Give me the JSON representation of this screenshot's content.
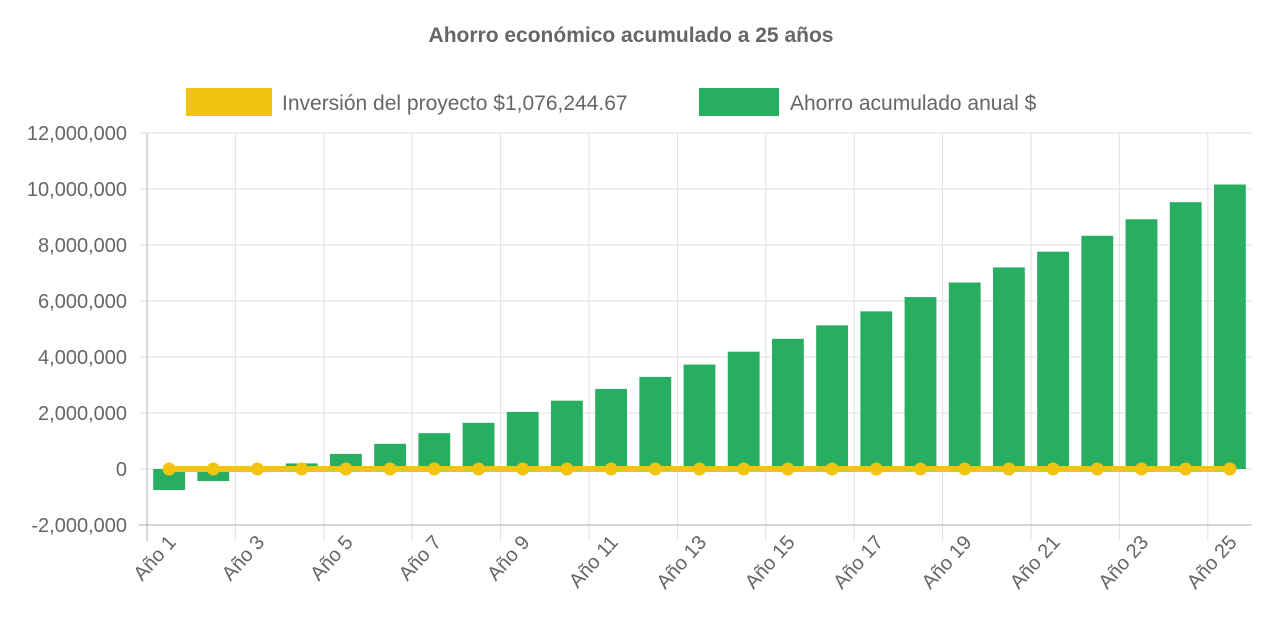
{
  "chart_data": {
    "type": "bar",
    "title": "Ahorro económico acumulado a 25 años",
    "xlabel": "",
    "ylabel": "",
    "ylim": [
      -2000000,
      12000000
    ],
    "y_ticks": [
      -2000000,
      0,
      2000000,
      4000000,
      6000000,
      8000000,
      10000000,
      12000000
    ],
    "grid": true,
    "legend_position": "top-center",
    "categories": [
      "Año 1",
      "Año 2",
      "Año 3",
      "Año 4",
      "Año 5",
      "Año 6",
      "Año 7",
      "Año 8",
      "Año 9",
      "Año 10",
      "Año 11",
      "Año 12",
      "Año 13",
      "Año 14",
      "Año 15",
      "Año 16",
      "Año 17",
      "Año 18",
      "Año 19",
      "Año 20",
      "Año 21",
      "Año 22",
      "Año 23",
      "Año 24",
      "Año 25"
    ],
    "x_tick_labels": [
      "Año 1",
      "Año 3",
      "Año 5",
      "Año 7",
      "Año 9",
      "Año 11",
      "Año 13",
      "Año 15",
      "Año 17",
      "Año 19",
      "Año 21",
      "Año 23",
      "Año 25"
    ],
    "series": [
      {
        "name": "Inversión del proyecto $1,076,244.67",
        "type": "line",
        "color": "#f2c40f",
        "values": [
          0,
          0,
          0,
          0,
          0,
          0,
          0,
          0,
          0,
          0,
          0,
          0,
          0,
          0,
          0,
          0,
          0,
          0,
          0,
          0,
          0,
          0,
          0,
          0,
          0
        ]
      },
      {
        "name": "Ahorro acumulado anual $",
        "type": "bar",
        "color": "#27ae60",
        "values": [
          -750000,
          -430000,
          -110000,
          200000,
          540000,
          900000,
          1280000,
          1650000,
          2040000,
          2440000,
          2860000,
          3290000,
          3730000,
          4190000,
          4650000,
          5130000,
          5630000,
          6140000,
          6660000,
          7200000,
          7760000,
          8330000,
          8920000,
          9530000,
          10160000
        ]
      }
    ]
  }
}
